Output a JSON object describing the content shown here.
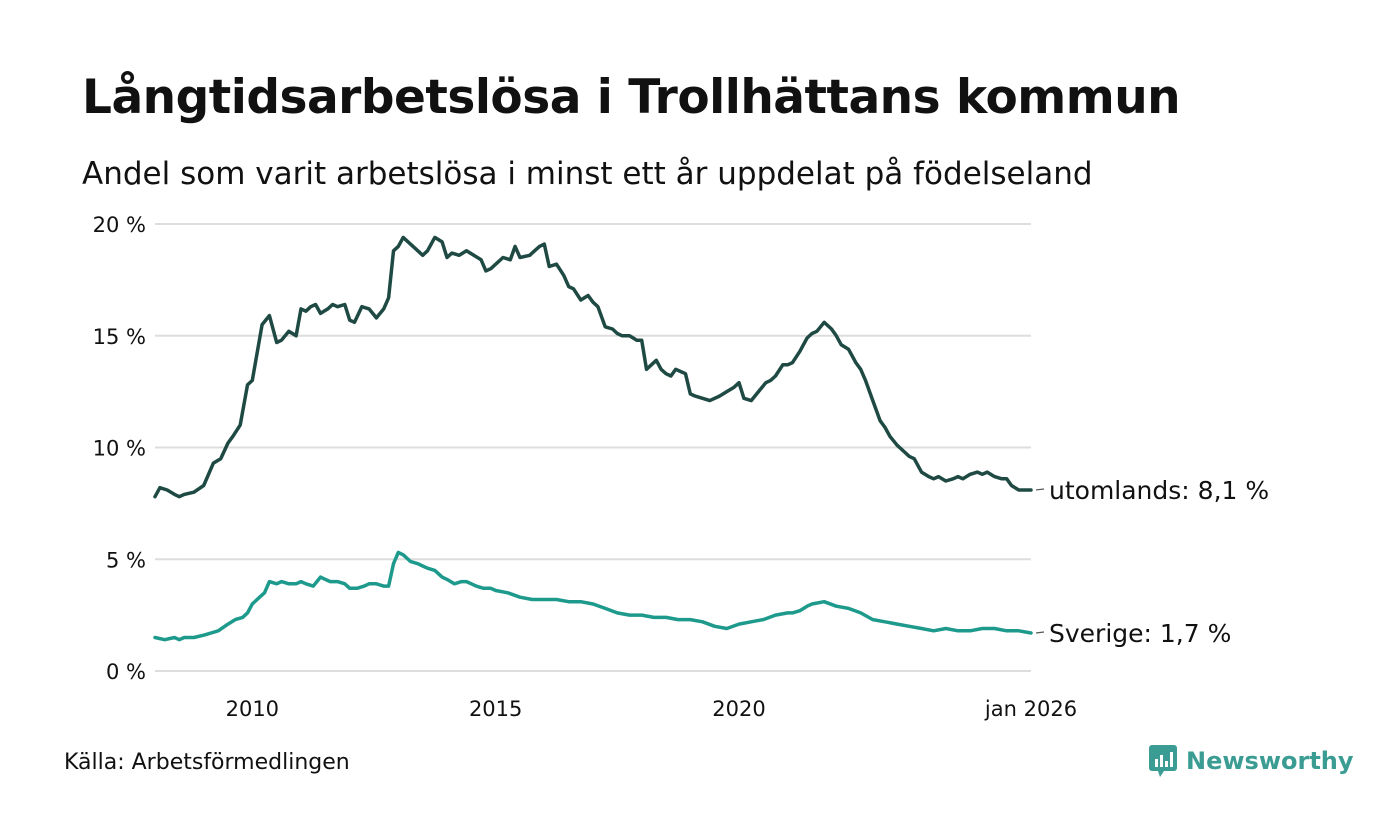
{
  "header": {
    "title": "Långtidsarbetslösa i Trollhättans kommun",
    "subtitle": "Andel som varit arbetslösa i minst ett år uppdelat på födelseland"
  },
  "footer": {
    "source": "Källa: Arbetsförmedlingen",
    "brand": "Newsworthy"
  },
  "colors": {
    "utomlands": "#1f4a44",
    "sverige": "#1e9a8c",
    "grid": "#dddddd",
    "brand": "#3a9c92"
  },
  "chart_data": {
    "type": "line",
    "title": "Långtidsarbetslösa i Trollhättans kommun",
    "subtitle": "Andel som varit arbetslösa i minst ett år uppdelat på födelseland",
    "xlabel": "",
    "ylabel": "",
    "xlim": [
      2008.0,
      2026.0
    ],
    "ylim": [
      0,
      20
    ],
    "yticks": [
      0,
      5,
      10,
      15,
      20
    ],
    "ytick_labels": [
      "0 %",
      "5 %",
      "10 %",
      "15 %",
      "20 %"
    ],
    "xticks": [
      2010,
      2015,
      2020,
      2026
    ],
    "xtick_labels": [
      "2010",
      "2015",
      "2020",
      "jan 2026"
    ],
    "grid": true,
    "legend": "end-labels",
    "series": [
      {
        "name": "utomlands",
        "end_label": "utomlands: 8,1 %",
        "color": "#1f4a44",
        "x": [
          2008.0,
          2008.1,
          2008.25,
          2008.4,
          2008.5,
          2008.6,
          2008.8,
          2009.0,
          2009.2,
          2009.35,
          2009.5,
          2009.6,
          2009.75,
          2009.9,
          2010.0,
          2010.2,
          2010.35,
          2010.5,
          2010.6,
          2010.75,
          2010.9,
          2011.0,
          2011.1,
          2011.2,
          2011.3,
          2011.4,
          2011.55,
          2011.65,
          2011.75,
          2011.9,
          2012.0,
          2012.1,
          2012.25,
          2012.4,
          2012.55,
          2012.7,
          2012.8,
          2012.9,
          2013.0,
          2013.1,
          2013.2,
          2013.35,
          2013.5,
          2013.6,
          2013.75,
          2013.9,
          2014.0,
          2014.1,
          2014.25,
          2014.4,
          2014.55,
          2014.7,
          2014.8,
          2014.9,
          2015.0,
          2015.15,
          2015.3,
          2015.4,
          2015.5,
          2015.7,
          2015.8,
          2015.9,
          2016.0,
          2016.1,
          2016.25,
          2016.4,
          2016.5,
          2016.6,
          2016.75,
          2016.9,
          2017.0,
          2017.1,
          2017.25,
          2017.4,
          2017.5,
          2017.6,
          2017.75,
          2017.9,
          2018.0,
          2018.1,
          2018.2,
          2018.3,
          2018.4,
          2018.5,
          2018.6,
          2018.7,
          2018.8,
          2018.9,
          2019.0,
          2019.1,
          2019.25,
          2019.4,
          2019.5,
          2019.6,
          2019.75,
          2019.9,
          2020.0,
          2020.1,
          2020.25,
          2020.4,
          2020.55,
          2020.65,
          2020.75,
          2020.9,
          2021.0,
          2021.1,
          2021.25,
          2021.4,
          2021.5,
          2021.6,
          2021.75,
          2021.9,
          2022.0,
          2022.1,
          2022.25,
          2022.4,
          2022.5,
          2022.6,
          2022.75,
          2022.9,
          2023.0,
          2023.1,
          2023.25,
          2023.4,
          2023.5,
          2023.6,
          2023.75,
          2023.9,
          2024.0,
          2024.1,
          2024.25,
          2024.4,
          2024.5,
          2024.6,
          2024.75,
          2024.9,
          2025.0,
          2025.1,
          2025.25,
          2025.4,
          2025.5,
          2025.6,
          2025.75,
          2025.9,
          2026.0
        ],
        "values": [
          7.8,
          8.2,
          8.1,
          7.9,
          7.8,
          7.9,
          8.0,
          8.3,
          9.3,
          9.5,
          10.2,
          10.5,
          11.0,
          12.8,
          13.0,
          15.5,
          15.9,
          14.7,
          14.8,
          15.2,
          15.0,
          16.2,
          16.1,
          16.3,
          16.4,
          16.0,
          16.2,
          16.4,
          16.3,
          16.4,
          15.7,
          15.6,
          16.3,
          16.2,
          15.8,
          16.2,
          16.7,
          18.8,
          19.0,
          19.4,
          19.2,
          18.9,
          18.6,
          18.8,
          19.4,
          19.2,
          18.5,
          18.7,
          18.6,
          18.8,
          18.6,
          18.4,
          17.9,
          18.0,
          18.2,
          18.5,
          18.4,
          19.0,
          18.5,
          18.6,
          18.8,
          19.0,
          19.1,
          18.1,
          18.2,
          17.7,
          17.2,
          17.1,
          16.6,
          16.8,
          16.5,
          16.3,
          15.4,
          15.3,
          15.1,
          15.0,
          15.0,
          14.8,
          14.8,
          13.5,
          13.7,
          13.9,
          13.5,
          13.3,
          13.2,
          13.5,
          13.4,
          13.3,
          12.4,
          12.3,
          12.2,
          12.1,
          12.2,
          12.3,
          12.5,
          12.7,
          12.9,
          12.2,
          12.1,
          12.5,
          12.9,
          13.0,
          13.2,
          13.7,
          13.7,
          13.8,
          14.3,
          14.9,
          15.1,
          15.2,
          15.6,
          15.3,
          15.0,
          14.6,
          14.4,
          13.8,
          13.5,
          13.0,
          12.1,
          11.2,
          10.9,
          10.5,
          10.1,
          9.8,
          9.6,
          9.5,
          8.9,
          8.7,
          8.6,
          8.7,
          8.5,
          8.6,
          8.7,
          8.6,
          8.8,
          8.9,
          8.8,
          8.9,
          8.7,
          8.6,
          8.6,
          8.3,
          8.1,
          8.1,
          8.1
        ]
      },
      {
        "name": "Sverige",
        "end_label": "Sverige: 1,7 %",
        "color": "#1e9a8c",
        "x": [
          2008.0,
          2008.2,
          2008.4,
          2008.5,
          2008.6,
          2008.8,
          2009.0,
          2009.15,
          2009.3,
          2009.5,
          2009.65,
          2009.8,
          2009.9,
          2010.0,
          2010.15,
          2010.25,
          2010.35,
          2010.5,
          2010.6,
          2010.75,
          2010.9,
          2011.0,
          2011.1,
          2011.25,
          2011.4,
          2011.5,
          2011.6,
          2011.75,
          2011.9,
          2012.0,
          2012.15,
          2012.3,
          2012.4,
          2012.55,
          2012.7,
          2012.8,
          2012.9,
          2013.0,
          2013.1,
          2013.25,
          2013.4,
          2013.5,
          2013.6,
          2013.75,
          2013.9,
          2014.0,
          2014.15,
          2014.3,
          2014.4,
          2014.5,
          2014.6,
          2014.75,
          2014.9,
          2015.0,
          2015.25,
          2015.5,
          2015.75,
          2016.0,
          2016.25,
          2016.5,
          2016.75,
          2017.0,
          2017.25,
          2017.5,
          2017.75,
          2018.0,
          2018.25,
          2018.5,
          2018.75,
          2019.0,
          2019.25,
          2019.5,
          2019.75,
          2020.0,
          2020.25,
          2020.5,
          2020.75,
          2021.0,
          2021.1,
          2021.25,
          2021.4,
          2021.5,
          2021.75,
          2022.0,
          2022.25,
          2022.5,
          2022.75,
          2023.0,
          2023.25,
          2023.5,
          2023.75,
          2024.0,
          2024.25,
          2024.5,
          2024.75,
          2025.0,
          2025.25,
          2025.5,
          2025.75,
          2026.0
        ],
        "values": [
          1.5,
          1.4,
          1.5,
          1.4,
          1.5,
          1.5,
          1.6,
          1.7,
          1.8,
          2.1,
          2.3,
          2.4,
          2.6,
          3.0,
          3.3,
          3.5,
          4.0,
          3.9,
          4.0,
          3.9,
          3.9,
          4.0,
          3.9,
          3.8,
          4.2,
          4.1,
          4.0,
          4.0,
          3.9,
          3.7,
          3.7,
          3.8,
          3.9,
          3.9,
          3.8,
          3.8,
          4.8,
          5.3,
          5.2,
          4.9,
          4.8,
          4.7,
          4.6,
          4.5,
          4.2,
          4.1,
          3.9,
          4.0,
          4.0,
          3.9,
          3.8,
          3.7,
          3.7,
          3.6,
          3.5,
          3.3,
          3.2,
          3.2,
          3.2,
          3.1,
          3.1,
          3.0,
          2.8,
          2.6,
          2.5,
          2.5,
          2.4,
          2.4,
          2.3,
          2.3,
          2.2,
          2.0,
          1.9,
          2.1,
          2.2,
          2.3,
          2.5,
          2.6,
          2.6,
          2.7,
          2.9,
          3.0,
          3.1,
          2.9,
          2.8,
          2.6,
          2.3,
          2.2,
          2.1,
          2.0,
          1.9,
          1.8,
          1.9,
          1.8,
          1.8,
          1.9,
          1.9,
          1.8,
          1.8,
          1.7
        ]
      }
    ]
  }
}
